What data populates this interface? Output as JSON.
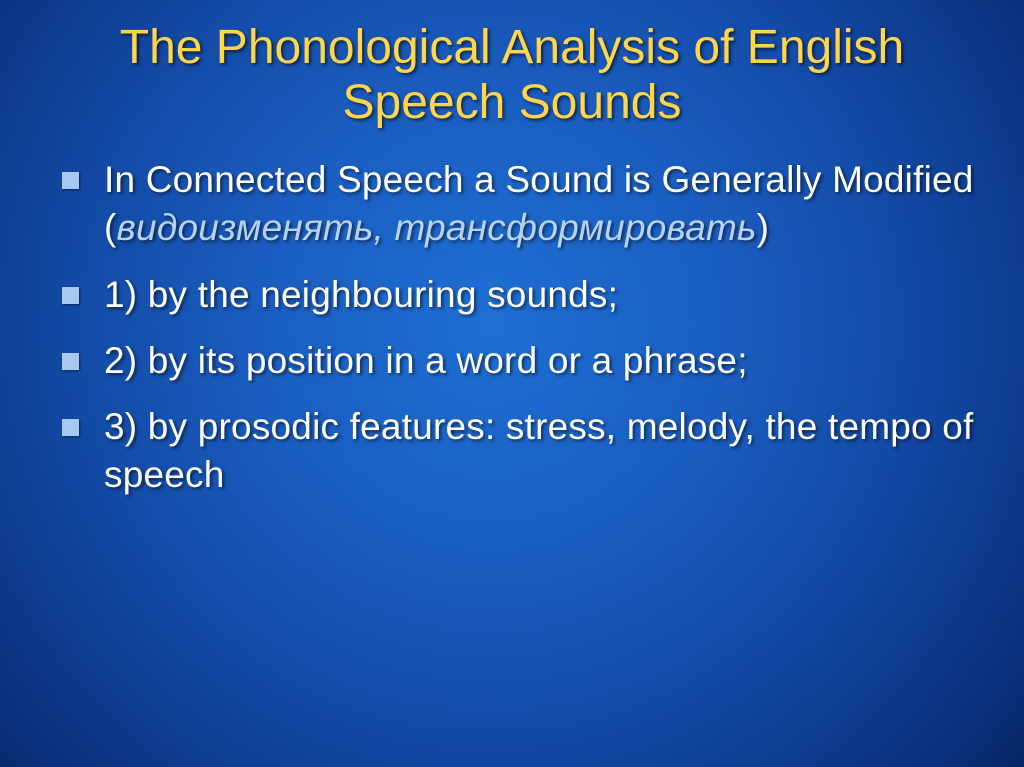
{
  "slide": {
    "title": "The Phonological Analysis of English Speech Sounds",
    "title_color": "#ffd54a",
    "title_fontsize": 48,
    "body_fontsize": 37,
    "body_color": "#ffffff",
    "muted_color": "#b9d2f0",
    "bullet_color": "#a7c8ef",
    "background_gradient": {
      "type": "radial",
      "center": "48% 42%",
      "stops": [
        {
          "color": "#1e6fd4",
          "at": "0%"
        },
        {
          "color": "#1a5cbf",
          "at": "35%"
        },
        {
          "color": "#134aa6",
          "at": "60%"
        },
        {
          "color": "#0a2f7b",
          "at": "90%"
        },
        {
          "color": "#072564",
          "at": "100%"
        }
      ]
    },
    "bullets": [
      {
        "lead_caps": "In Connected Speech a Sound is Generally Modified (",
        "muted_italic": "видоизменять, трансформировать",
        "close": ")"
      },
      {
        "text": "1) by the neighbouring sounds;"
      },
      {
        "text": "2)  by its position in a word or a phrase;"
      },
      {
        "text": "3) by prosodic features: stress, melody, the tempo of speech"
      }
    ]
  }
}
